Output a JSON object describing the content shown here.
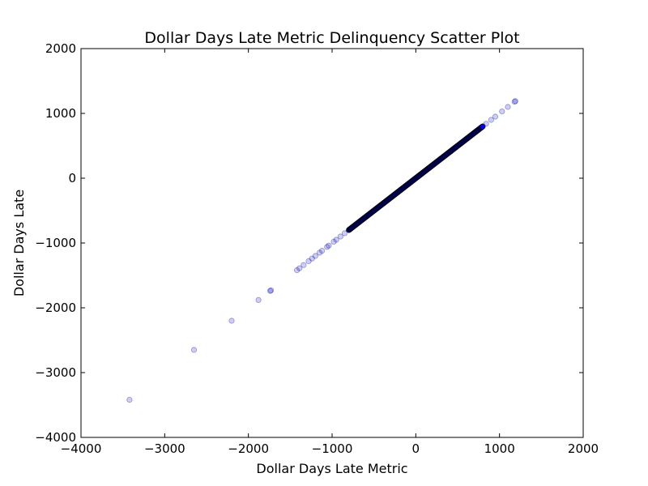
{
  "chart_data": {
    "type": "scatter",
    "title": "Dollar Days Late Metric Delinquency Scatter Plot",
    "xlabel": "Dollar Days Late Metric",
    "ylabel": "Dollar Days Late",
    "xlim": [
      -4000,
      2000
    ],
    "ylim": [
      -4000,
      2000
    ],
    "xticks": [
      -4000,
      -3000,
      -2000,
      -1000,
      0,
      1000,
      2000
    ],
    "yticks": [
      -4000,
      -3000,
      -2000,
      -1000,
      0,
      1000,
      2000
    ],
    "xtick_labels": [
      "−4000",
      "−3000",
      "−2000",
      "−1000",
      "0",
      "1000",
      "2000"
    ],
    "ytick_labels": [
      "−4000",
      "−3000",
      "−2000",
      "−1000",
      "0",
      "1000",
      "2000"
    ],
    "grid": false,
    "marker_color": "#0000ff",
    "marker_alpha": 0.2,
    "series": [
      {
        "x": [
          -3420,
          -2650,
          -2200,
          -1880,
          -1740,
          -1730,
          -1420,
          -1390,
          -1340,
          -1280,
          -1240,
          -1200,
          -1150,
          -1120,
          -1060,
          -1040,
          -980,
          -950,
          -900,
          -850,
          -800,
          -760,
          -720,
          -690,
          -660,
          -620,
          -580,
          -540,
          -500,
          -460,
          -420,
          -380,
          -340,
          -300,
          -260,
          -220,
          -180,
          -140,
          -100,
          -60,
          -20,
          0,
          20,
          60,
          100,
          140,
          180,
          220,
          260,
          300,
          340,
          380,
          420,
          460,
          500,
          540,
          580,
          620,
          660,
          700,
          740,
          790,
          840,
          900,
          950,
          1030,
          1100,
          1180,
          1190
        ],
        "y": [
          -3420,
          -2650,
          -2200,
          -1880,
          -1740,
          -1730,
          -1420,
          -1390,
          -1340,
          -1280,
          -1240,
          -1200,
          -1150,
          -1120,
          -1060,
          -1040,
          -980,
          -950,
          -900,
          -850,
          -800,
          -760,
          -720,
          -690,
          -660,
          -620,
          -580,
          -540,
          -500,
          -460,
          -420,
          -380,
          -340,
          -300,
          -260,
          -220,
          -180,
          -140,
          -100,
          -60,
          -20,
          0,
          20,
          60,
          100,
          140,
          180,
          220,
          260,
          300,
          340,
          380,
          420,
          460,
          500,
          540,
          580,
          620,
          660,
          700,
          740,
          790,
          840,
          900,
          950,
          1030,
          1100,
          1180,
          1190
        ]
      }
    ]
  }
}
